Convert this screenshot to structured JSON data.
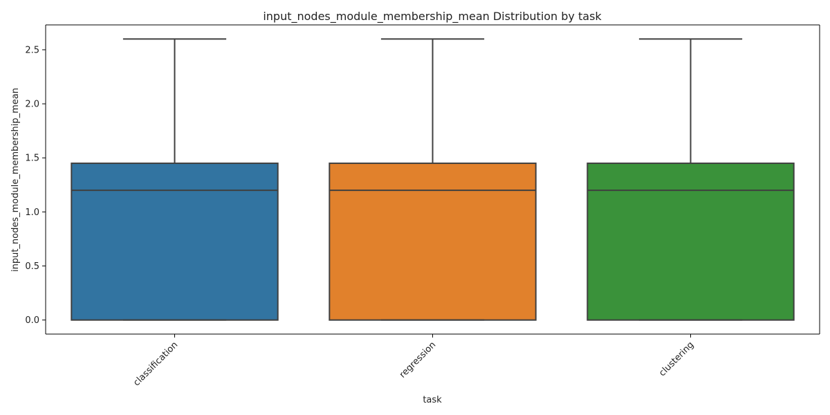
{
  "chart_data": {
    "type": "box",
    "title": "input_nodes_module_membership_mean Distribution by task",
    "xlabel": "task",
    "ylabel": "input_nodes_module_membership_mean",
    "ylim": [
      -0.13,
      2.73
    ],
    "yticks": [
      0.0,
      0.5,
      1.0,
      1.5,
      2.0,
      2.5
    ],
    "ytick_labels": [
      "0.0",
      "0.5",
      "1.0",
      "1.5",
      "2.0",
      "2.5"
    ],
    "grid": false,
    "legend": "none",
    "categories": [
      "classification",
      "regression",
      "clustering"
    ],
    "boxes": [
      {
        "category": "classification",
        "whisker_low": 0.0,
        "q1": 0.0,
        "median": 1.2,
        "q3": 1.45,
        "whisker_high": 2.6,
        "color": "#3274a1"
      },
      {
        "category": "regression",
        "whisker_low": 0.0,
        "q1": 0.0,
        "median": 1.2,
        "q3": 1.45,
        "whisker_high": 2.6,
        "color": "#e1812c"
      },
      {
        "category": "clustering",
        "whisker_low": 0.0,
        "q1": 0.0,
        "median": 1.2,
        "q3": 1.45,
        "whisker_high": 2.6,
        "color": "#3a923a"
      }
    ]
  }
}
